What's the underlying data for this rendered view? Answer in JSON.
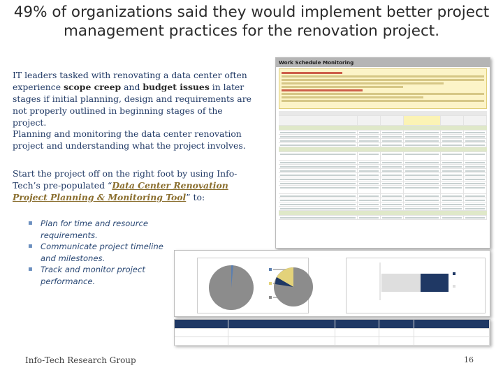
{
  "title": {
    "line1": "49% of organizations said they would implement better project",
    "line2": "management practices for the renovation project."
  },
  "para1": {
    "t1": "IT leaders tasked with renovating a data center often experience ",
    "b1": "scope creep",
    "t2": " and ",
    "b2": "budget issues",
    "t3": " in later stages if initial planning, design and requirements are not properly outlined in beginning stages of the project."
  },
  "para2": "Planning and monitoring the data center renovation project and understanding what the project involves.",
  "para3": {
    "t1": "Start the project off on the right foot by using Info-Tech’s pre-populated “",
    "link": "Data Center Renovation Project Planning & Monitoring Tool",
    "t2": "” to:"
  },
  "bullets": [
    "Plan for time and resource requirements.",
    "Communicate project timeline and milestones.",
    "Track and monitor project performance."
  ],
  "doc": {
    "header": "Work Schedule Monitoring"
  },
  "footer": {
    "left": "Info-Tech Research Group",
    "right": "16"
  }
}
